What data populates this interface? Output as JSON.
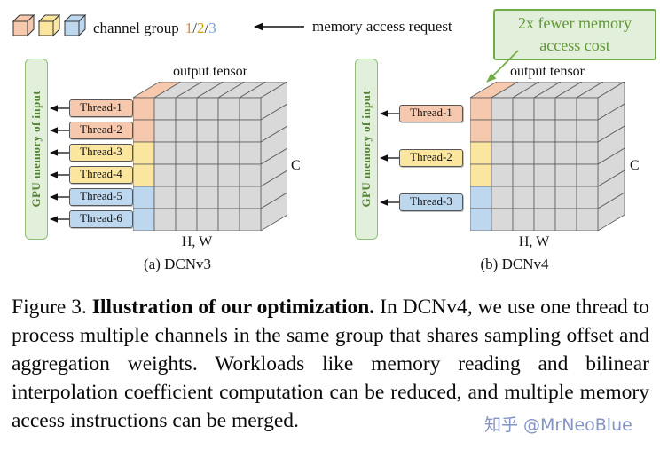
{
  "legend": {
    "cube_colors": [
      "#F6C9AE",
      "#FBE6A0",
      "#BDD7EE"
    ],
    "label": "channel group",
    "groups": [
      {
        "text": "1",
        "color": "#E8833A"
      },
      {
        "text": "/",
        "color": "#333333"
      },
      {
        "text": "2",
        "color": "#D2A106"
      },
      {
        "text": "/",
        "color": "#333333"
      },
      {
        "text": "3",
        "color": "#6FA8DC"
      }
    ],
    "arrow_label": "memory access request"
  },
  "annotation": {
    "text": "2x fewer memory access cost",
    "fill": "#E2EFDA",
    "border": "#70AD47",
    "text_color": "#5E9732"
  },
  "tensor": {
    "gray": "#D9D9D9",
    "stroke": "#5A5A5A"
  },
  "panels": [
    {
      "gpu_label": "GPU memory of input",
      "threads": [
        {
          "label": "Thread-1",
          "color": "#F6C9AE"
        },
        {
          "label": "Thread-2",
          "color": "#F6C9AE"
        },
        {
          "label": "Thread-3",
          "color": "#FBE6A0"
        },
        {
          "label": "Thread-4",
          "color": "#FBE6A0"
        },
        {
          "label": "Thread-5",
          "color": "#BDD7EE"
        },
        {
          "label": "Thread-6",
          "color": "#BDD7EE"
        }
      ],
      "first_col_colors": [
        "#F6C9AE",
        "#F6C9AE",
        "#FBE6A0",
        "#FBE6A0",
        "#BDD7EE",
        "#BDD7EE"
      ],
      "tensor_label": "output tensor",
      "c_label": "C",
      "hw_label": "H, W",
      "caption": "(a) DCNv3"
    },
    {
      "gpu_label": "GPU memory of input",
      "threads": [
        {
          "label": "Thread-1",
          "color": "#F6C9AE"
        },
        {
          "label": "Thread-2",
          "color": "#FBE6A0"
        },
        {
          "label": "Thread-3",
          "color": "#BDD7EE"
        }
      ],
      "first_col_colors": [
        "#F6C9AE",
        "#F6C9AE",
        "#FBE6A0",
        "#FBE6A0",
        "#BDD7EE",
        "#BDD7EE"
      ],
      "tensor_label": "output tensor",
      "c_label": "C",
      "hw_label": "H, W",
      "caption": "(b) DCNv4"
    }
  ],
  "figure_caption": {
    "prefix": "Figure 3. ",
    "bold": "Illustration of our optimization.",
    "rest": " In DCNv4, we use one thread to process multiple channels in the same group that shares sampling offset and aggregation weights. Workloads like memory reading and bilinear interpolation coefficient computation can be reduced, and multiple memory access instructions can be merged."
  },
  "watermark": "知乎 @MrNeoBlue"
}
